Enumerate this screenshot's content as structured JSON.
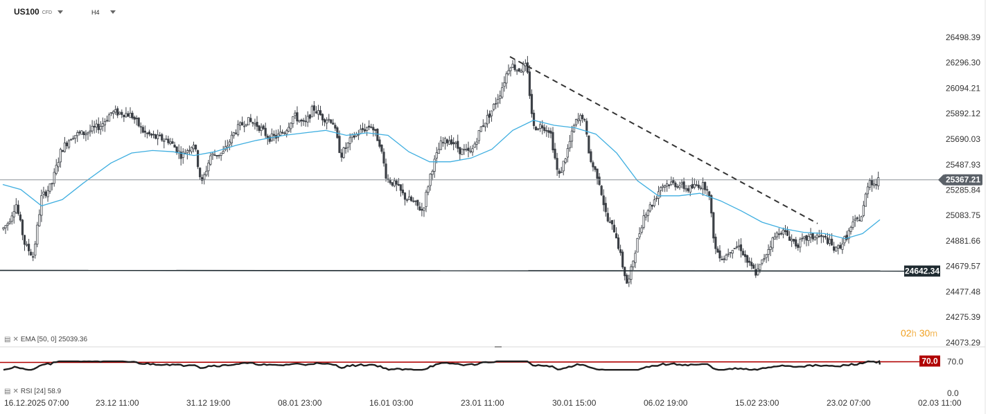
{
  "header": {
    "symbol": "US100",
    "symbol_type": "CFD",
    "timeframe": "H4"
  },
  "indicators": {
    "ema_label": "EMA [50, 0] 25039.36",
    "rsi_label": "RSI [24] 58.9"
  },
  "timer": {
    "hours": "02",
    "h": "h",
    "minutes": "30",
    "m": "m"
  },
  "colors": {
    "candle": "#3c4046",
    "ema": "#3eaee0",
    "rsi": "#1e1e1e",
    "rsi_level": "#b00000",
    "price_badge": "#5b6168",
    "support_badge": "#1e2a30"
  },
  "chart_data": {
    "type": "candlestick",
    "y_axis_ticks": [
      "26498.39",
      "26296.30",
      "26094.21",
      "25892.12",
      "25690.03",
      "25487.93",
      "25285.84",
      "25083.75",
      "24881.66",
      "24679.57",
      "24477.48",
      "24275.39",
      "24073.29"
    ],
    "y_range": [
      24073.29,
      26498.39
    ],
    "x_axis_ticks": [
      "16.12.2025 07:00",
      "23.12 11:00",
      "31.12 19:00",
      "08.01 23:00",
      "16.01 03:00",
      "23.01 11:00",
      "30.01 15:00",
      "06.02 19:00",
      "15.02 23:00",
      "23.02 07:00",
      "02.03 11:00"
    ],
    "current_price": "25367.21",
    "support_level": "24642.34",
    "trendline": {
      "from": 26345,
      "to": 25020
    },
    "ema_period": 50,
    "rsi": {
      "period": 24,
      "value": 58.9,
      "levels": [
        "70.0",
        "0.0"
      ],
      "overbought": "70.0"
    },
    "close_path": [
      [
        0,
        24950
      ],
      [
        12,
        25030
      ],
      [
        23,
        25180
      ],
      [
        36,
        24850
      ],
      [
        48,
        24760
      ],
      [
        60,
        25230
      ],
      [
        74,
        25320
      ],
      [
        88,
        25600
      ],
      [
        104,
        25720
      ],
      [
        124,
        25740
      ],
      [
        146,
        25800
      ],
      [
        160,
        25900
      ],
      [
        176,
        25900
      ],
      [
        190,
        25880
      ],
      [
        208,
        25740
      ],
      [
        226,
        25700
      ],
      [
        244,
        25680
      ],
      [
        262,
        25560
      ],
      [
        280,
        25660
      ],
      [
        291,
        25330
      ],
      [
        304,
        25560
      ],
      [
        322,
        25580
      ],
      [
        340,
        25760
      ],
      [
        356,
        25840
      ],
      [
        372,
        25800
      ],
      [
        388,
        25700
      ],
      [
        400,
        25710
      ],
      [
        412,
        25760
      ],
      [
        424,
        25880
      ],
      [
        440,
        25800
      ],
      [
        452,
        25940
      ],
      [
        466,
        25860
      ],
      [
        480,
        25840
      ],
      [
        492,
        25560
      ],
      [
        508,
        25700
      ],
      [
        522,
        25760
      ],
      [
        536,
        25800
      ],
      [
        548,
        25660
      ],
      [
        558,
        25380
      ],
      [
        572,
        25320
      ],
      [
        584,
        25230
      ],
      [
        596,
        25190
      ],
      [
        610,
        25120
      ],
      [
        622,
        25430
      ],
      [
        636,
        25650
      ],
      [
        650,
        25690
      ],
      [
        664,
        25600
      ],
      [
        680,
        25580
      ],
      [
        694,
        25780
      ],
      [
        708,
        25900
      ],
      [
        722,
        26060
      ],
      [
        736,
        26290
      ],
      [
        748,
        26240
      ],
      [
        760,
        26270
      ],
      [
        770,
        25780
      ],
      [
        782,
        25800
      ],
      [
        794,
        25760
      ],
      [
        806,
        25380
      ],
      [
        818,
        25580
      ],
      [
        830,
        25820
      ],
      [
        842,
        25880
      ],
      [
        852,
        25520
      ],
      [
        864,
        25380
      ],
      [
        876,
        25050
      ],
      [
        888,
        24960
      ],
      [
        898,
        24700
      ],
      [
        906,
        24520
      ],
      [
        918,
        24840
      ],
      [
        930,
        25100
      ],
      [
        942,
        25180
      ],
      [
        954,
        25320
      ],
      [
        966,
        25340
      ],
      [
        980,
        25330
      ],
      [
        994,
        25290
      ],
      [
        1008,
        25330
      ],
      [
        1022,
        25310
      ],
      [
        1032,
        24820
      ],
      [
        1044,
        24740
      ],
      [
        1056,
        24830
      ],
      [
        1068,
        24840
      ],
      [
        1080,
        24700
      ],
      [
        1092,
        24620
      ],
      [
        1102,
        24740
      ],
      [
        1114,
        24880
      ],
      [
        1126,
        24970
      ],
      [
        1138,
        24920
      ],
      [
        1150,
        24850
      ],
      [
        1164,
        24900
      ],
      [
        1180,
        24920
      ],
      [
        1194,
        24890
      ],
      [
        1206,
        24800
      ],
      [
        1220,
        24900
      ],
      [
        1232,
        25020
      ],
      [
        1244,
        25080
      ],
      [
        1254,
        25380
      ],
      [
        1262,
        25330
      ],
      [
        1270,
        25367
      ]
    ],
    "ema_path": [
      [
        4,
        25330
      ],
      [
        30,
        25290
      ],
      [
        60,
        25160
      ],
      [
        90,
        25210
      ],
      [
        120,
        25340
      ],
      [
        160,
        25500
      ],
      [
        190,
        25580
      ],
      [
        220,
        25600
      ],
      [
        250,
        25590
      ],
      [
        280,
        25560
      ],
      [
        310,
        25590
      ],
      [
        340,
        25640
      ],
      [
        370,
        25680
      ],
      [
        410,
        25720
      ],
      [
        440,
        25740
      ],
      [
        470,
        25760
      ],
      [
        500,
        25720
      ],
      [
        530,
        25740
      ],
      [
        560,
        25720
      ],
      [
        590,
        25590
      ],
      [
        620,
        25510
      ],
      [
        650,
        25510
      ],
      [
        680,
        25540
      ],
      [
        710,
        25610
      ],
      [
        740,
        25760
      ],
      [
        770,
        25840
      ],
      [
        800,
        25800
      ],
      [
        830,
        25780
      ],
      [
        860,
        25730
      ],
      [
        890,
        25580
      ],
      [
        920,
        25360
      ],
      [
        950,
        25240
      ],
      [
        980,
        25240
      ],
      [
        1010,
        25260
      ],
      [
        1040,
        25200
      ],
      [
        1070,
        25120
      ],
      [
        1100,
        25030
      ],
      [
        1130,
        24980
      ],
      [
        1160,
        24950
      ],
      [
        1190,
        24940
      ],
      [
        1220,
        24900
      ],
      [
        1245,
        24940
      ],
      [
        1270,
        25050
      ]
    ]
  }
}
